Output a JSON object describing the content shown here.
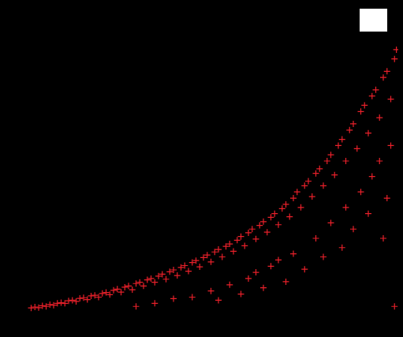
{
  "chart_data": {
    "type": "scatter",
    "marker": "plus",
    "color": "#e8202a",
    "tick_labels": false,
    "xlim": [
      0,
      100
    ],
    "ylim": [
      0,
      100
    ],
    "x": [
      2,
      3,
      4,
      5,
      6,
      7,
      8,
      9,
      10,
      11,
      12,
      13,
      14,
      15,
      16,
      17,
      18,
      19,
      20,
      21,
      22,
      23,
      24,
      25,
      26,
      27,
      28,
      29,
      30,
      31,
      32,
      33,
      34,
      35,
      36,
      37,
      38,
      39,
      40,
      41,
      42,
      43,
      44,
      45,
      46,
      47,
      48,
      49,
      50,
      51,
      52,
      53,
      54,
      55,
      56,
      57,
      58,
      59,
      60,
      61,
      62,
      63,
      64,
      65,
      66,
      67,
      68,
      69,
      70,
      71,
      72,
      73,
      74,
      75,
      76,
      77,
      78,
      79,
      80,
      81,
      82,
      83,
      84,
      85,
      86,
      87,
      88,
      89,
      90,
      91,
      92,
      93,
      94,
      95,
      96,
      97,
      98,
      99,
      99.5,
      30,
      35,
      40,
      45,
      50,
      52,
      55,
      58,
      60,
      62,
      64,
      66,
      68,
      70,
      72,
      75,
      78,
      80,
      82,
      85,
      86,
      88,
      90,
      92,
      93,
      95,
      96,
      97,
      98,
      99
    ],
    "values": [
      2.5,
      2.8,
      2.6,
      3.2,
      3.0,
      3.6,
      3.4,
      4.0,
      4.2,
      4.0,
      4.8,
      5.0,
      4.6,
      5.6,
      5.8,
      5.2,
      6.4,
      6.6,
      6.0,
      7.2,
      7.5,
      6.8,
      8.2,
      8.6,
      7.6,
      9.2,
      9.6,
      8.4,
      10.4,
      10.8,
      9.6,
      11.6,
      12.0,
      10.8,
      12.8,
      13.4,
      11.8,
      14.2,
      14.8,
      13.0,
      15.6,
      16.2,
      14.4,
      17.2,
      17.8,
      15.8,
      18.8,
      19.6,
      17.4,
      20.6,
      21.4,
      19.0,
      22.4,
      23.2,
      20.8,
      24.4,
      25.6,
      22.6,
      26.8,
      28.0,
      24.8,
      29.2,
      30.4,
      27.0,
      31.8,
      33.0,
      29.4,
      34.6,
      36.0,
      32.0,
      38.0,
      40.0,
      35.0,
      42.0,
      43.5,
      38.5,
      46.0,
      47.5,
      42.0,
      50.0,
      52.0,
      45.5,
      55.0,
      57.0,
      50.0,
      60.0,
      62.0,
      54.0,
      66.0,
      68.0,
      59.0,
      71.0,
      73.0,
      64.0,
      77.0,
      79.0,
      70.0,
      83.0,
      86.0,
      3,
      4,
      5.5,
      6,
      8,
      5,
      10,
      7,
      12,
      14,
      9,
      16,
      18,
      11,
      20,
      15,
      25,
      19,
      30,
      22,
      35,
      28,
      40,
      33,
      45,
      50,
      25,
      38,
      55,
      3
    ]
  }
}
